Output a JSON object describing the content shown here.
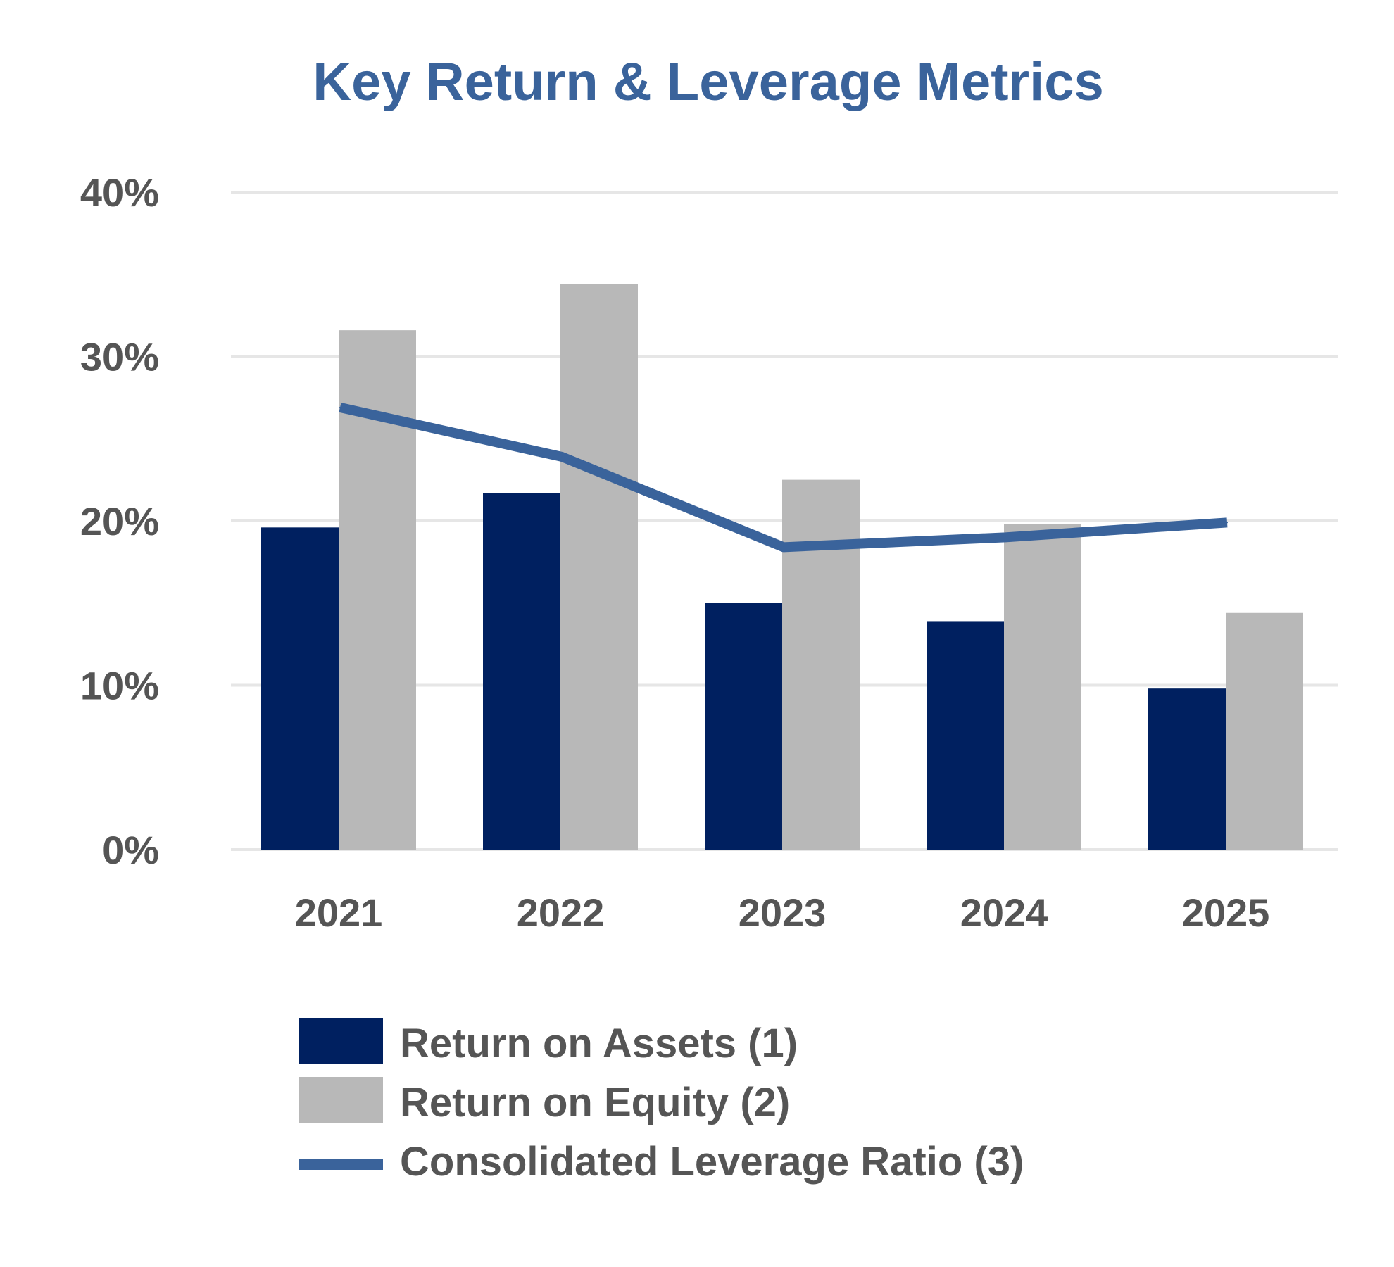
{
  "chart_data": {
    "type": "bar",
    "title": "Key Return & Leverage Metrics",
    "categories": [
      "2021",
      "2022",
      "2023",
      "2024",
      "2025"
    ],
    "ylim": [
      0,
      40
    ],
    "yticks": [
      "0%",
      "10%",
      "20%",
      "30%",
      "40%"
    ],
    "ytick_values": [
      0,
      10,
      20,
      30,
      40
    ],
    "grid": true,
    "legend_position": "bottom",
    "series": [
      {
        "name": "Return on Assets (1)",
        "type": "bar",
        "color": "#002060",
        "values": [
          19.6,
          21.7,
          15.0,
          13.9,
          9.8
        ]
      },
      {
        "name": "Return on Equity (2)",
        "type": "bar",
        "color": "#b8b8b8",
        "values": [
          31.6,
          34.4,
          22.5,
          19.8,
          14.4
        ]
      },
      {
        "name": "Consolidated Leverage Ratio (3)",
        "type": "line",
        "color": "#3a639b",
        "values": [
          26.9,
          23.9,
          18.4,
          19.0,
          19.9
        ]
      }
    ]
  }
}
